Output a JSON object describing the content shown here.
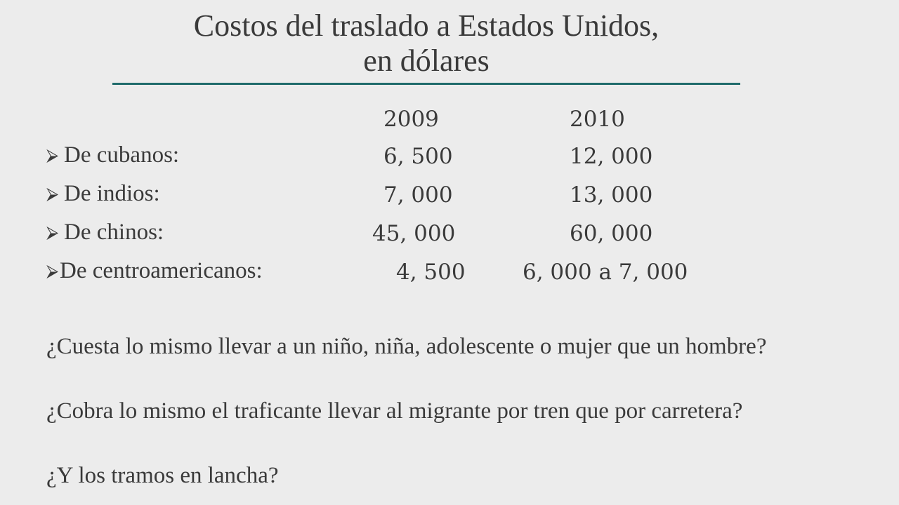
{
  "slide": {
    "title_line1": "Costos del traslado a Estados Unidos,",
    "title_line2": "en dólares"
  },
  "table": {
    "col_headers": [
      "2009",
      "2010"
    ],
    "bullet_icon": "arrow-bullet-icon",
    "rows": [
      {
        "label": "De cubanos:",
        "y2009": "6, 500",
        "y2010": "12, 000"
      },
      {
        "label": "De indios:",
        "y2009": "7, 000",
        "y2010": "13, 000"
      },
      {
        "label": "De chinos:",
        "y2009": "45, 000",
        "y2010": "60, 000"
      },
      {
        "label": "De centroamericanos:",
        "y2009": "4, 500",
        "y2010": "6, 000 a 7, 000"
      }
    ]
  },
  "questions": [
    "¿Cuesta lo mismo llevar a un niño, niña, adolescente o mujer que un hombre?",
    "¿Cobra lo mismo el traficante llevar al migrante por tren que por carretera?",
    "¿Y los tramos en lancha?"
  ],
  "colors": {
    "background": "#ececec",
    "text": "#3a3a3a",
    "accent_rule": "#1f6b6b"
  }
}
